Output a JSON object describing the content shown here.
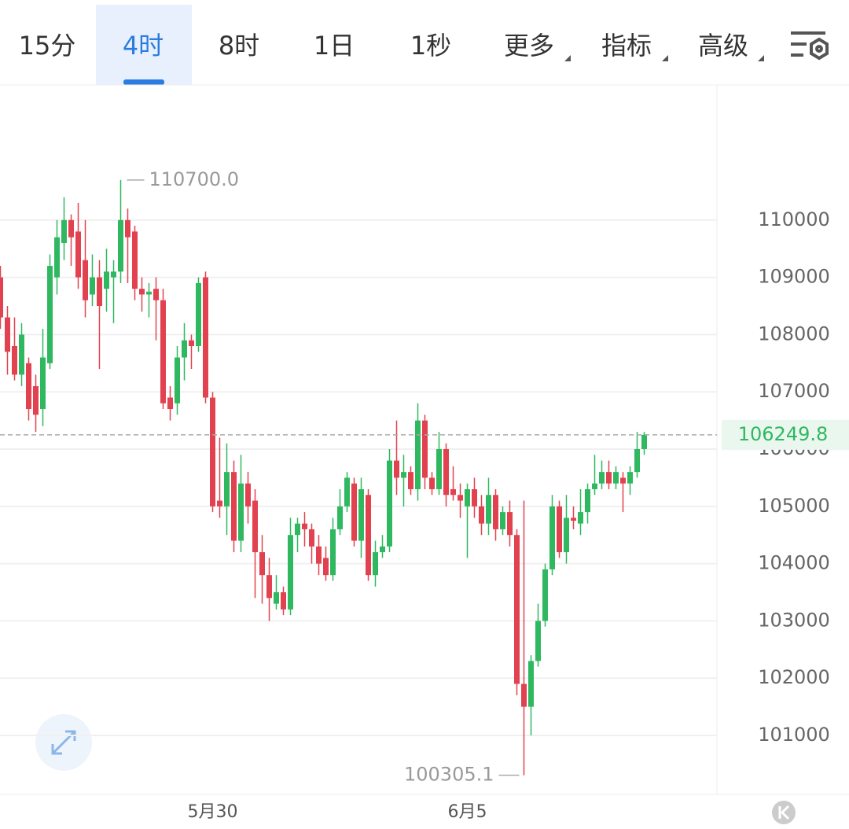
{
  "tabs": [
    "15分",
    "4时",
    "8时",
    "1日",
    "1秒",
    "更多",
    "指标",
    "高级"
  ],
  "chart_data": {
    "type": "candlestick",
    "categories": [
      null,
      null,
      null,
      null,
      null,
      null,
      null,
      null,
      null,
      null,
      null,
      null,
      null,
      null,
      null,
      null,
      null,
      null,
      null,
      null,
      null,
      null,
      null,
      null,
      null,
      null,
      null,
      null,
      null,
      null,
      "5月30",
      null,
      null,
      null,
      null,
      null,
      null,
      null,
      null,
      null,
      null,
      null,
      null,
      null,
      null,
      null,
      null,
      null,
      null,
      null,
      null,
      null,
      null,
      null,
      null,
      null,
      null,
      null,
      null,
      null,
      null,
      null,
      null,
      null,
      null,
      null,
      "6月5",
      null,
      null,
      null,
      null,
      null,
      null,
      null,
      null,
      null,
      null,
      null,
      null,
      null,
      null,
      null,
      null,
      null,
      null,
      null,
      null,
      null,
      null,
      null,
      null,
      null
    ],
    "open": [
      109000,
      108300,
      107800,
      107300,
      107500,
      107100,
      106700,
      107500,
      109000,
      109600,
      110000,
      109800,
      109300,
      108700,
      109000,
      108800,
      109000,
      109100,
      110000,
      109800,
      108800,
      108700,
      108800,
      108600,
      106900,
      106800,
      107600,
      107900,
      107800,
      109000,
      106900,
      105100,
      105000,
      105600,
      104400,
      105400,
      105100,
      104200,
      103800,
      103300,
      103500,
      103200,
      104500,
      104700,
      104600,
      104300,
      104100,
      103800,
      104600,
      105000,
      105400,
      104400,
      105200,
      103800,
      104200,
      104300,
      105800,
      105500,
      105600,
      105300,
      106500,
      105500,
      105300,
      106000,
      105300,
      105200,
      105000,
      105300,
      105000,
      104700,
      105200,
      104600,
      104900,
      104500,
      101900,
      101500,
      102300,
      103000,
      103900,
      105000,
      104200,
      104800,
      104700,
      104900,
      105300,
      105400,
      105600,
      105400,
      105500,
      105400,
      105600,
      106000
    ],
    "high": [
      109200,
      108500,
      108300,
      108200,
      107600,
      107300,
      108100,
      109400,
      110000,
      110400,
      110100,
      110300,
      110000,
      109400,
      109300,
      109500,
      109300,
      110700,
      110200,
      109900,
      109000,
      108900,
      109000,
      108800,
      107100,
      107800,
      108200,
      108000,
      109000,
      109100,
      107000,
      106200,
      106100,
      105800,
      105900,
      105600,
      105300,
      104500,
      104100,
      103800,
      103600,
      104800,
      104800,
      104900,
      104700,
      104500,
      104300,
      104800,
      105300,
      105600,
      105500,
      105500,
      105300,
      104400,
      104500,
      106000,
      106500,
      105900,
      105700,
      106800,
      106600,
      105600,
      106300,
      106100,
      105700,
      105400,
      105400,
      105500,
      105200,
      105500,
      105300,
      105000,
      105100,
      104600,
      105100,
      102400,
      103300,
      104000,
      105200,
      105100,
      105200,
      105000,
      105300,
      105400,
      105900,
      105800,
      105800,
      105700,
      105600,
      105700,
      106300,
      106300
    ],
    "low": [
      108100,
      107300,
      107200,
      107100,
      106500,
      106300,
      106400,
      107400,
      108700,
      109300,
      109200,
      108800,
      108300,
      108500,
      107400,
      108400,
      108200,
      108900,
      108900,
      108600,
      108400,
      108300,
      107900,
      106700,
      106500,
      106600,
      107200,
      107400,
      107700,
      106800,
      104900,
      104800,
      104500,
      104200,
      104200,
      104700,
      103400,
      103300,
      103000,
      103200,
      103100,
      103100,
      104200,
      104300,
      104000,
      103800,
      103700,
      103700,
      104500,
      104900,
      104300,
      104100,
      103700,
      103600,
      104100,
      104200,
      105200,
      105000,
      105200,
      105100,
      105300,
      105200,
      105200,
      105000,
      105100,
      104800,
      104100,
      104800,
      104500,
      104500,
      104400,
      104500,
      104300,
      101700,
      100305.1,
      101000,
      102200,
      102900,
      103800,
      104100,
      104000,
      104600,
      104500,
      104700,
      105200,
      105300,
      105300,
      105300,
      104900,
      105200,
      105500,
      105900
    ],
    "close": [
      108300,
      107700,
      107300,
      108000,
      106700,
      106600,
      107600,
      109200,
      109700,
      110000,
      109700,
      109000,
      108600,
      109000,
      108500,
      109100,
      109100,
      110000,
      109700,
      108800,
      108700,
      108750,
      108600,
      106800,
      106700,
      107600,
      107900,
      107800,
      108900,
      106900,
      105000,
      105000,
      105600,
      104400,
      105400,
      105000,
      104200,
      103800,
      103400,
      103500,
      103200,
      104500,
      104700,
      104600,
      104300,
      104000,
      103800,
      104600,
      105000,
      105500,
      104400,
      105300,
      103800,
      104200,
      104300,
      105800,
      105500,
      105600,
      105300,
      106500,
      105500,
      105300,
      106000,
      105200,
      105200,
      105100,
      105300,
      105000,
      104700,
      105200,
      104600,
      104900,
      104500,
      101900,
      101500,
      102300,
      103000,
      103900,
      105000,
      104200,
      104800,
      104750,
      104900,
      105300,
      105400,
      105600,
      105400,
      105600,
      105400,
      105600,
      106000,
      106249.8
    ],
    "high_label": "110700.0",
    "low_label": "100305.1",
    "up_color": "#2fb860",
    "down_color": "#e2424f",
    "ylim": [
      99970,
      112360
    ],
    "yticks": [
      101000,
      102000,
      103000,
      104000,
      105000,
      106000,
      107000,
      108000,
      109000,
      110000
    ],
    "grid": true,
    "last_price_line": true
  }
}
